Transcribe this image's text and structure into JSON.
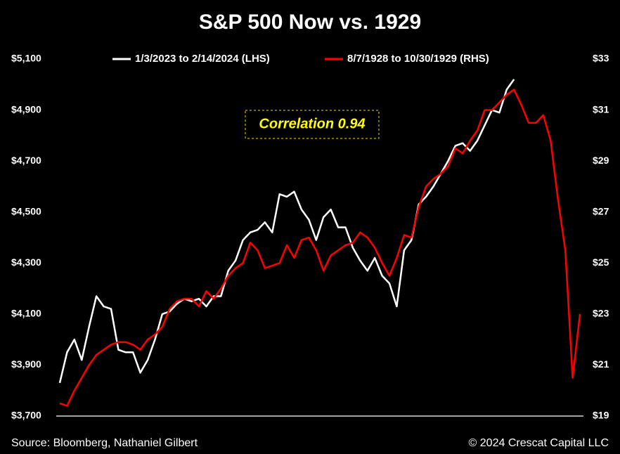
{
  "chart_data": {
    "type": "line",
    "title": "S&P 500 Now vs. 1929",
    "annotation": "Correlation 0.94",
    "source": "Source: Bloomberg, Nathaniel Gilbert",
    "credit": "© 2024 Crescat Capital LLC",
    "categories": [
      null,
      null,
      null,
      null,
      null,
      null,
      null,
      null,
      null,
      null,
      null,
      null,
      null,
      null,
      null,
      null,
      null,
      null,
      null,
      null,
      null,
      null,
      null,
      null,
      null,
      null,
      null,
      null,
      null,
      null,
      null,
      null,
      null,
      null,
      null,
      null,
      null,
      null,
      null,
      null,
      null,
      null,
      null,
      null,
      null,
      null,
      null,
      null,
      null,
      null,
      null,
      null,
      null,
      null,
      null,
      null,
      null,
      null,
      null,
      null,
      null,
      null,
      null,
      null,
      null,
      null,
      null,
      null,
      null,
      null,
      null,
      null
    ],
    "series": [
      {
        "name": "1/3/2023 to 2/14/2024 (LHS)",
        "color": "#ffffff",
        "axis": "y",
        "values": [
          3830,
          3950,
          4000,
          3920,
          4050,
          4170,
          4130,
          4120,
          3960,
          3950,
          3950,
          3870,
          3920,
          4000,
          4100,
          4110,
          4140,
          4160,
          4150,
          4160,
          4130,
          4170,
          4170,
          4270,
          4310,
          4390,
          4420,
          4430,
          4460,
          4420,
          4570,
          4560,
          4580,
          4510,
          4470,
          4390,
          4480,
          4510,
          4440,
          4440,
          4360,
          4310,
          4270,
          4320,
          4250,
          4220,
          4130,
          4350,
          4390,
          4530,
          4560,
          4600,
          4650,
          4700,
          4760,
          4770,
          4740,
          4780,
          4840,
          4900,
          4890,
          4980,
          5020,
          null,
          null,
          null,
          null,
          null,
          null,
          null,
          null,
          null
        ]
      },
      {
        "name": "8/7/1928 to 10/30/1929 (RHS)",
        "color": "#ff0000",
        "axis": "y2",
        "values": [
          19.5,
          19.4,
          20.0,
          20.5,
          21.0,
          21.4,
          21.6,
          21.8,
          21.9,
          21.9,
          21.8,
          21.6,
          22.0,
          22.2,
          22.5,
          23.2,
          23.5,
          23.6,
          23.6,
          23.3,
          23.9,
          23.6,
          24.0,
          24.5,
          24.8,
          25.0,
          25.8,
          25.5,
          24.8,
          24.9,
          25.0,
          25.7,
          25.2,
          25.9,
          26.0,
          25.5,
          24.7,
          25.3,
          25.5,
          25.7,
          25.8,
          26.2,
          26.0,
          25.6,
          25.0,
          24.5,
          25.2,
          26.1,
          26.0,
          27.2,
          28.0,
          28.3,
          28.5,
          28.8,
          29.5,
          29.3,
          29.8,
          30.2,
          31.0,
          31.0,
          31.3,
          31.6,
          31.8,
          31.2,
          30.5,
          30.5,
          30.8,
          29.8,
          27.5,
          25.5,
          20.5,
          23.0
        ]
      }
    ],
    "ylim": [
      3700,
      5100
    ],
    "yticks": [
      {
        "value": 3700,
        "label": "$3,700"
      },
      {
        "value": 3900,
        "label": "$3,900"
      },
      {
        "value": 4100,
        "label": "$4,100"
      },
      {
        "value": 4300,
        "label": "$4,300"
      },
      {
        "value": 4500,
        "label": "$4,500"
      },
      {
        "value": 4700,
        "label": "$4,700"
      },
      {
        "value": 4900,
        "label": "$4,900"
      },
      {
        "value": 5100,
        "label": "$5,100"
      }
    ],
    "y2lim": [
      19,
      33
    ],
    "y2ticks": [
      {
        "value": 19,
        "label": "$19"
      },
      {
        "value": 21,
        "label": "$21"
      },
      {
        "value": 23,
        "label": "$23"
      },
      {
        "value": 25,
        "label": "$25"
      },
      {
        "value": 27,
        "label": "$27"
      },
      {
        "value": 29,
        "label": "$29"
      },
      {
        "value": 31,
        "label": "$31"
      },
      {
        "value": 33,
        "label": "$33"
      }
    ]
  }
}
